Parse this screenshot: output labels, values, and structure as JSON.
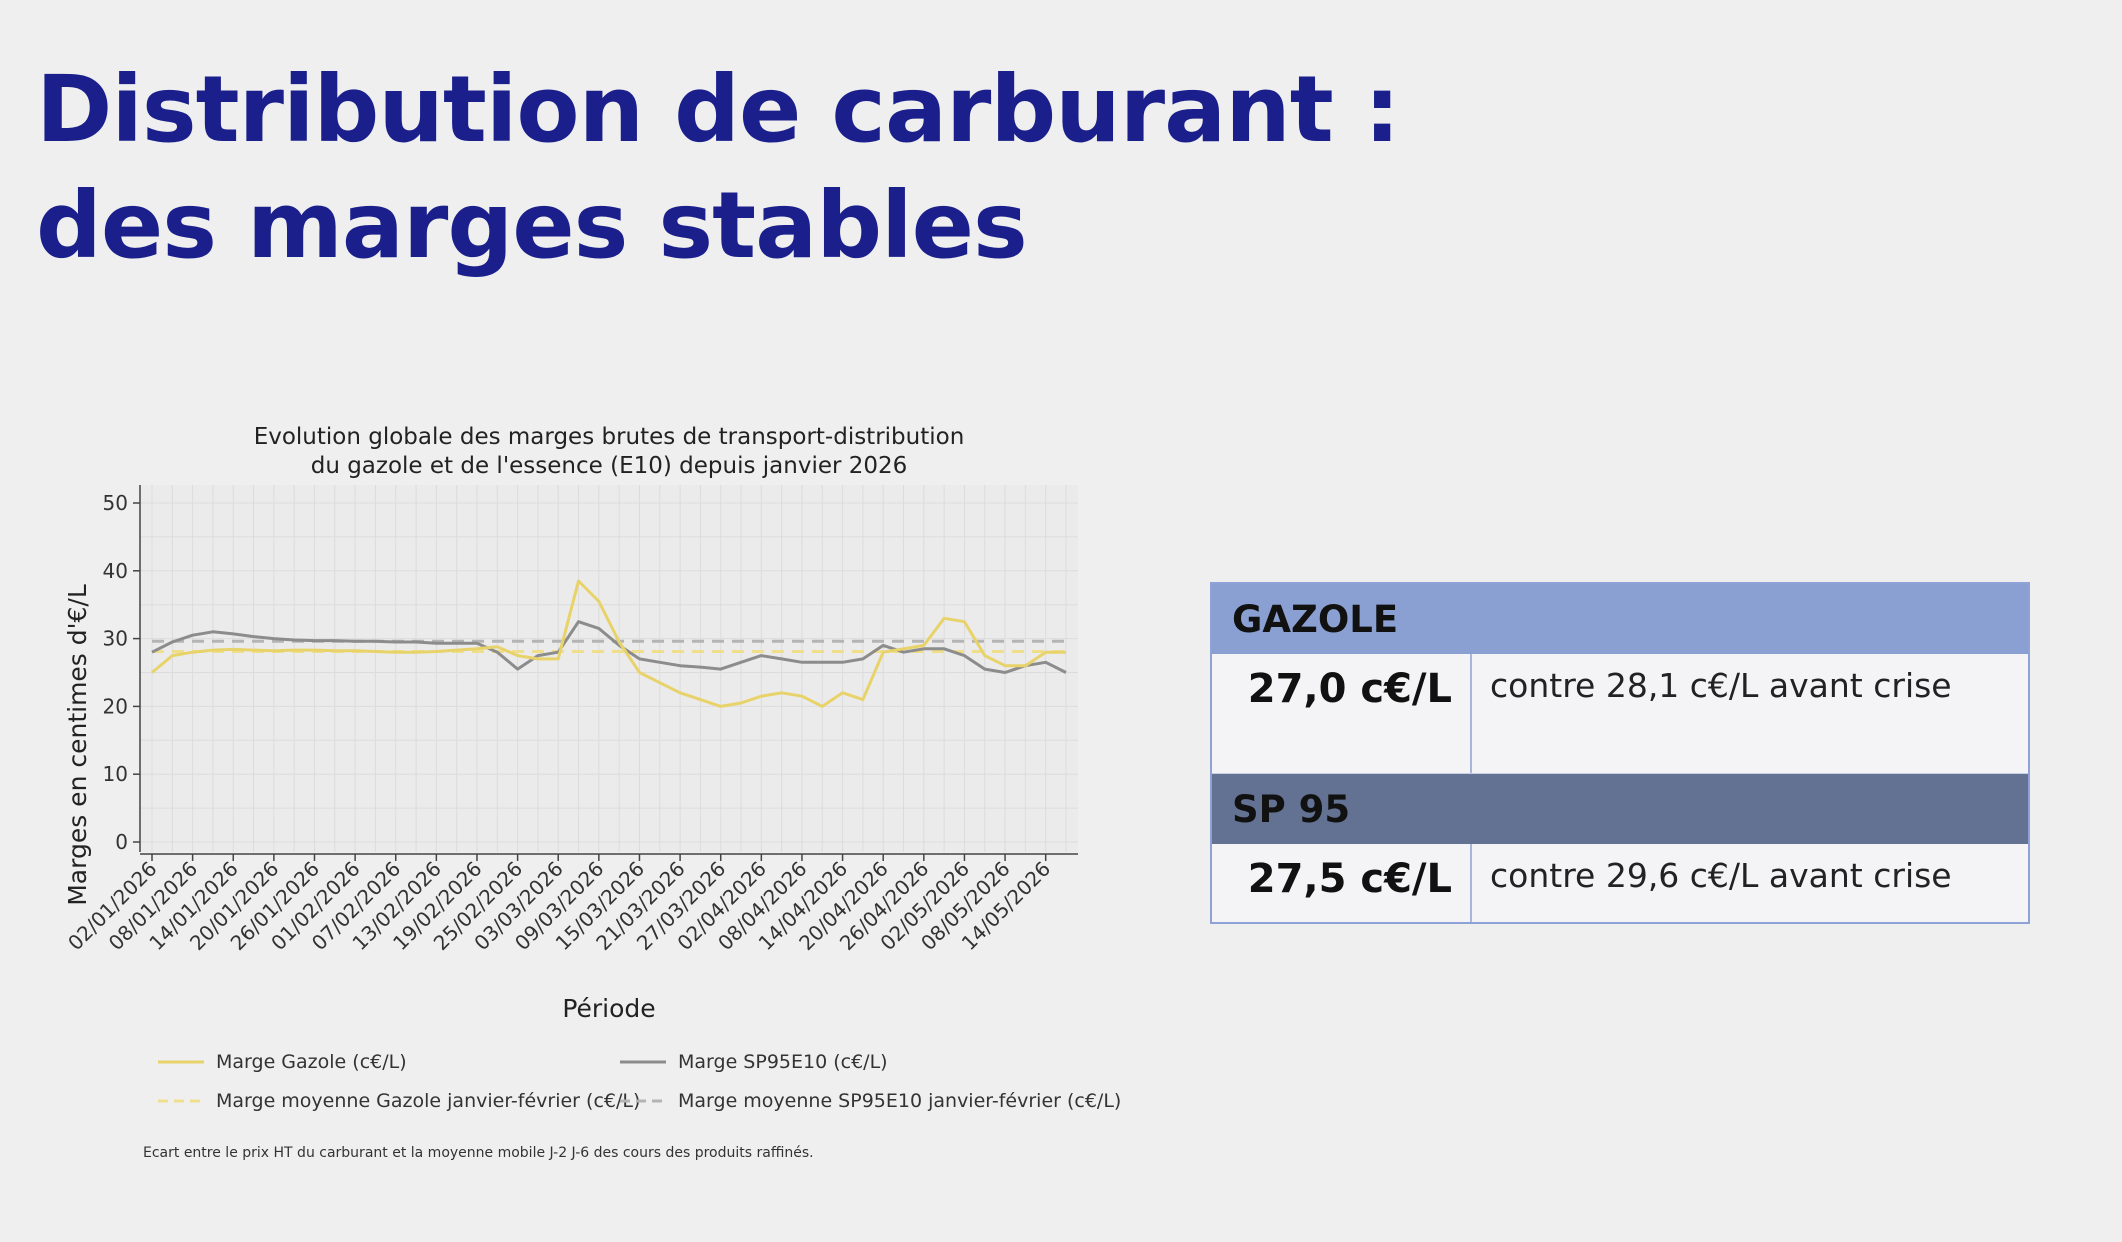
{
  "slide": {
    "title_line1": "Distribution de carburant :",
    "title_line2": "des marges stables"
  },
  "colors": {
    "title": "#1a1f8c",
    "gazole_line": "#e8d36a",
    "sp95_line": "#8c8c8c",
    "gazole_avg": "#f0df8a",
    "sp95_avg": "#b4b4b4",
    "table_header_gazole": "#8ba0d2",
    "table_header_sp95": "#637292"
  },
  "chart_data": {
    "type": "line",
    "title_line1": "Evolution globale des marges brutes de transport-distribution",
    "title_line2": "du gazole et de l'essence (E10) depuis janvier 2026",
    "xlabel": "Période",
    "ylabel": "Marges en centimes d'€/L",
    "ylim": [
      0,
      50
    ],
    "yticks": [
      0,
      10,
      20,
      30,
      40,
      50
    ],
    "grid": true,
    "legend_position": "bottom",
    "x": [
      "02/01/2026",
      "05/01/2026",
      "08/01/2026",
      "11/01/2026",
      "14/01/2026",
      "17/01/2026",
      "20/01/2026",
      "23/01/2026",
      "26/01/2026",
      "29/01/2026",
      "01/02/2026",
      "04/02/2026",
      "07/02/2026",
      "10/02/2026",
      "13/02/2026",
      "16/02/2026",
      "19/02/2026",
      "22/02/2026",
      "25/02/2026",
      "28/02/2026",
      "03/03/2026",
      "06/03/2026",
      "09/03/2026",
      "12/03/2026",
      "15/03/2026",
      "18/03/2026",
      "21/03/2026",
      "24/03/2026",
      "27/03/2026",
      "30/03/2026",
      "02/04/2026",
      "05/04/2026",
      "08/04/2026",
      "11/04/2026",
      "14/04/2026",
      "17/04/2026",
      "20/04/2026",
      "23/04/2026",
      "26/04/2026",
      "29/04/2026",
      "02/05/2026",
      "05/05/2026",
      "08/05/2026",
      "11/05/2026",
      "14/05/2026",
      "17/05/2026"
    ],
    "xtick_labels": [
      "02/01/2026",
      "08/01/2026",
      "14/01/2026",
      "20/01/2026",
      "26/01/2026",
      "01/02/2026",
      "07/02/2026",
      "13/02/2026",
      "19/02/2026",
      "25/02/2026",
      "03/03/2026",
      "09/03/2026",
      "15/03/2026",
      "21/03/2026",
      "27/03/2026",
      "02/04/2026",
      "08/04/2026",
      "14/04/2026",
      "20/04/2026",
      "26/04/2026",
      "02/05/2026",
      "08/05/2026",
      "14/05/2026"
    ],
    "series": [
      {
        "name": "Marge Gazole (c€/L)",
        "style": "solid",
        "values": [
          25,
          27.5,
          28,
          28.3,
          28.4,
          28.3,
          28.2,
          28.3,
          28.3,
          28.2,
          28.2,
          28.1,
          28,
          28,
          28.1,
          28.3,
          28.5,
          28.8,
          27.5,
          27,
          27,
          38.5,
          35.5,
          29.5,
          25,
          23.5,
          22,
          21,
          20,
          20.5,
          21.5,
          22,
          21.5,
          20,
          22,
          21,
          28,
          28.5,
          29,
          33,
          32.5,
          27.5,
          26,
          26,
          28,
          28
        ]
      },
      {
        "name": "Marge SP95E10 (c€/L)",
        "style": "solid",
        "values": [
          28,
          29.5,
          30.5,
          31,
          30.7,
          30.3,
          30,
          29.8,
          29.7,
          29.7,
          29.6,
          29.6,
          29.5,
          29.5,
          29.3,
          29.3,
          29.3,
          28,
          25.5,
          27.5,
          28,
          32.5,
          31.5,
          29,
          27,
          26.5,
          26,
          25.8,
          25.5,
          26.5,
          27.5,
          27,
          26.5,
          26.5,
          26.5,
          27,
          29,
          28,
          28.5,
          28.5,
          27.5,
          25.5,
          25,
          26,
          26.5,
          25
        ]
      },
      {
        "name": "Marge moyenne Gazole janvier-février (c€/L)",
        "style": "dashed",
        "values": [
          28.1,
          28.1,
          28.1,
          28.1,
          28.1,
          28.1,
          28.1,
          28.1,
          28.1,
          28.1,
          28.1,
          28.1,
          28.1,
          28.1,
          28.1,
          28.1,
          28.1,
          28.1,
          28.1,
          28.1,
          28.1,
          28.1,
          28.1,
          28.1,
          28.1,
          28.1,
          28.1,
          28.1,
          28.1,
          28.1,
          28.1,
          28.1,
          28.1,
          28.1,
          28.1,
          28.1,
          28.1,
          28.1,
          28.1,
          28.1,
          28.1,
          28.1,
          28.1,
          28.1,
          28.1,
          28.1
        ]
      },
      {
        "name": "Marge moyenne SP95E10 janvier-février (c€/L)",
        "style": "dashed",
        "values": [
          29.6,
          29.6,
          29.6,
          29.6,
          29.6,
          29.6,
          29.6,
          29.6,
          29.6,
          29.6,
          29.6,
          29.6,
          29.6,
          29.6,
          29.6,
          29.6,
          29.6,
          29.6,
          29.6,
          29.6,
          29.6,
          29.6,
          29.6,
          29.6,
          29.6,
          29.6,
          29.6,
          29.6,
          29.6,
          29.6,
          29.6,
          29.6,
          29.6,
          29.6,
          29.6,
          29.6,
          29.6,
          29.6,
          29.6,
          29.6,
          29.6,
          29.6,
          29.6,
          29.6,
          29.6,
          29.6
        ]
      }
    ],
    "footnote": "Ecart entre le prix HT du carburant et la moyenne mobile J-2 J-6 des cours des produits raffinés."
  },
  "table": {
    "gazole": {
      "header": "GAZOLE",
      "value": "27,0 c€/L",
      "comparison": "contre 28,1 c€/L avant crise"
    },
    "sp95": {
      "header": "SP 95",
      "value": "27,5 c€/L",
      "comparison": "contre 29,6 c€/L avant crise"
    }
  }
}
